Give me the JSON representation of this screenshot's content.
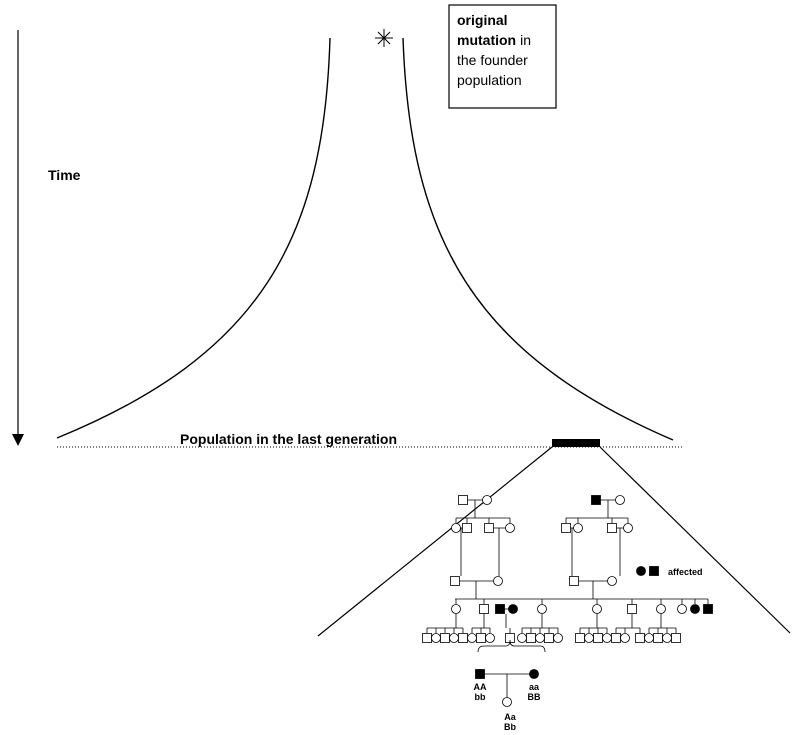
{
  "callout": {
    "lines": [
      [
        {
          "text": "original",
          "bold": true
        }
      ],
      [
        {
          "text": "mutation",
          "bold": true
        },
        {
          "text": "in",
          "bold": false
        }
      ],
      [
        {
          "text": "the founder",
          "bold": false
        }
      ],
      [
        {
          "text": "population",
          "bold": false
        }
      ]
    ]
  },
  "time_label": "Time",
  "population_label": "Population in the last generation",
  "legend_label": "affected",
  "genotypes": {
    "father": [
      "AA",
      "bb"
    ],
    "mother": [
      "aa",
      "BB"
    ],
    "child": [
      "Aa",
      "Bb"
    ]
  }
}
